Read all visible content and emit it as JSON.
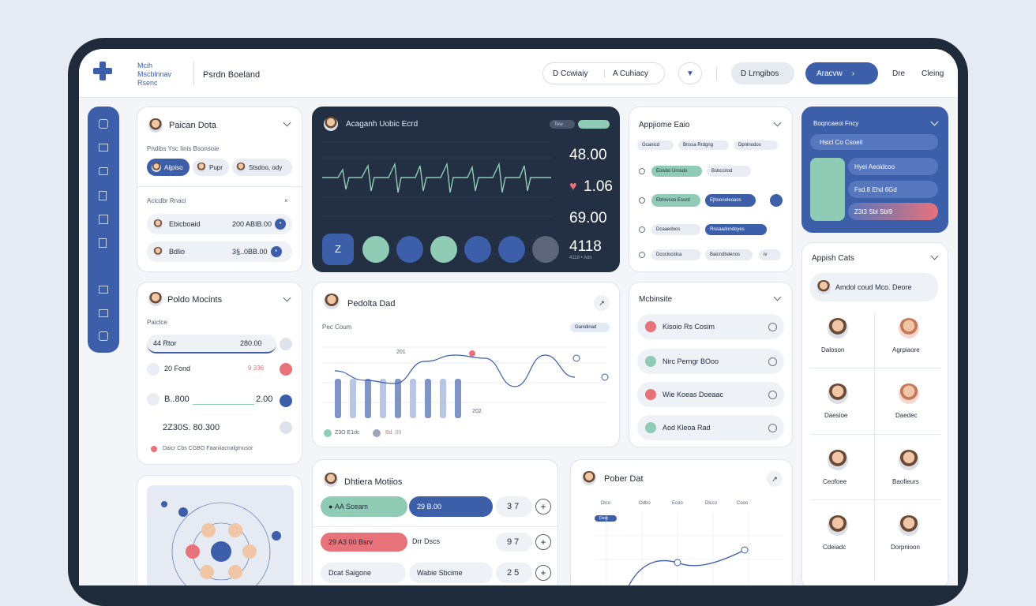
{
  "brand": {
    "line1": "Mcih",
    "line2": "Mscblnnav",
    "line3": "Rsenc",
    "title": "Psrdn Boeland"
  },
  "topbar": {
    "seg1": "D Ccwiaiy",
    "seg2": "A Cuhiacy",
    "btn1": "D Lrngibos",
    "btn2": "Aracvw",
    "link1": "Dre",
    "link2": "Cleing"
  },
  "patient_data": {
    "title": "Paican Dota",
    "sub": "Pndibs Ysc Iinis Bsonsoie",
    "chips": [
      "Aijpiso",
      "Pupr",
      "Stsdoo, ody"
    ],
    "sec": "Acicdbr Rnaci",
    "rows": [
      {
        "name": "Ebicboaid",
        "val": "200 ABIB.00"
      },
      {
        "name": "Bdlio",
        "val": "3§..0BB.00"
      }
    ]
  },
  "monitor": {
    "title": "Acaganh Uobic Ecrd",
    "tag1": "Tew",
    "vals": [
      "48.00",
      "1.06",
      "69.00",
      "4118"
    ],
    "sub": "4118 • Adn",
    "buttons": [
      "Z",
      "O",
      "B",
      "O",
      "O",
      "O",
      "O"
    ]
  },
  "appt": {
    "title": "Appjiome Eaio",
    "tags": [
      "Gcanicd",
      "Bnssa Rrdgng",
      "Dpnlnodos"
    ],
    "rows": [
      [
        "Eoisbo Urnsdo",
        "Bsbccirod"
      ],
      [
        "Ebhrvsoo Esord",
        "Ejhoonoleoaos"
      ],
      [
        "Dcaaedoos",
        "Rnoaadondoyes"
      ],
      [
        "Dcoclocidca",
        "Baicndbdenos",
        "iv"
      ]
    ]
  },
  "notif": {
    "title": "Boqncaeoi Fncy",
    "search": "Hsicl Co Csoeil",
    "items": [
      "Hyei Aeoidcoo",
      "Fsd.8 Ehd 6Gd",
      "Z3I3 Sbl Sbl9"
    ]
  },
  "patient_motions": {
    "title": "Poldo Mocints",
    "sub": "Paiclce",
    "rows": [
      {
        "n": "44 Rtor",
        "v": "280.00"
      },
      {
        "n": "20 Fond",
        "v": "9 336"
      },
      {
        "n": "B..800",
        "v": "2.00"
      },
      {
        "n": "2Z30S. 80.300",
        "v": ""
      }
    ],
    "foot": "Daicr Cbs CGBO Faaniiacnalgmusor"
  },
  "pedia": {
    "title": "Pedolta Dad",
    "sub": "Pec Coum",
    "tag": "Ganidinad",
    "label1": "201",
    "label2": "202",
    "legend1": "Z3O E1dc",
    "legend2": "Bd..00"
  },
  "mobile": {
    "title": "Mcbinsite",
    "items": [
      "Kisoio Rs Cosim",
      "Nirc Perngr BOoo",
      "Wie Koeas Doeaac",
      "Aod Kleoa Rad"
    ]
  },
  "appist": {
    "title": "Appish Cats",
    "top": "Amdol coud Mco. Deore",
    "people": [
      "Daloson",
      "Agrpiaore",
      "Daesioe",
      "Daedec",
      "Ceofoee",
      "Baofieurs",
      "Cdeiadc",
      "Dorpnioon"
    ]
  },
  "dptiera": {
    "title": "Dhtiera Motiios",
    "rows": [
      {
        "a": "AA Sceam",
        "b": "29 B.00",
        "n": "3 7"
      },
      {
        "a": "29 A3 00 Bsrv",
        "b": "Drr Dscs",
        "n": "9 7"
      },
      {
        "a": "Dcat Saigone",
        "b": "Wabie Sbcime",
        "n": "2 5"
      }
    ]
  },
  "pober": {
    "title": "Pober Dat",
    "tags": [
      "Dlco",
      "Odbo",
      "Ecoo",
      "Dlcco",
      "Cooo"
    ],
    "bar": "Desc"
  },
  "colors": {
    "accent": "#3d5ea8",
    "teal": "#8fcbb5",
    "red": "#e8727a",
    "dark": "#232f42"
  },
  "chart_data": [
    {
      "type": "line",
      "title": "Acaganh Uobic Ecrd",
      "note": "ECG waveform",
      "values": [
        0,
        0,
        1,
        -1,
        0,
        0,
        1,
        -1,
        0,
        0,
        1,
        -1,
        0,
        0,
        1,
        -1,
        0,
        0,
        1,
        -1,
        0
      ]
    },
    {
      "type": "bar",
      "title": "Pedolta Dad",
      "values": [
        5,
        5,
        5,
        5,
        5,
        5,
        5,
        5,
        5
      ],
      "line": [
        3,
        2.4,
        2.2,
        3.6,
        4,
        3.8,
        2,
        4,
        2.6
      ]
    }
  ]
}
